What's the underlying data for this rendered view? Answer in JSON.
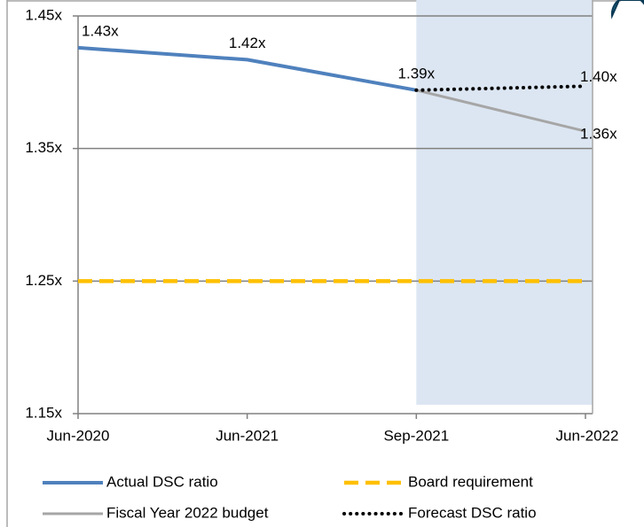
{
  "chart_data": {
    "type": "line",
    "categories": [
      "Jun-2020",
      "Jun-2021",
      "Sep-2021",
      "Jun-2022"
    ],
    "series": [
      {
        "name": "Actual DSC ratio",
        "color": "#4f81bd",
        "style": "solid",
        "values": [
          1.426,
          1.417,
          1.394,
          null
        ],
        "value_labels": [
          "1.43x",
          "1.42x",
          "1.39x",
          null
        ]
      },
      {
        "name": "Board requirement",
        "color": "#ffc000",
        "style": "dashed",
        "values": [
          1.25,
          1.25,
          1.25,
          1.25
        ]
      },
      {
        "name": "Fiscal Year 2022 budget",
        "color": "#a6a6a6",
        "style": "solid",
        "values": [
          null,
          null,
          1.394,
          1.363
        ],
        "value_labels": [
          null,
          null,
          null,
          "1.36x"
        ]
      },
      {
        "name": "Forecast DSC ratio",
        "color": "#000000",
        "style": "dotted",
        "values": [
          null,
          null,
          1.394,
          1.397
        ],
        "value_labels": [
          null,
          null,
          null,
          "1.40x"
        ]
      }
    ],
    "ylim": [
      1.15,
      1.45
    ],
    "yticks": [
      {
        "value": 1.15,
        "label": "1.15x"
      },
      {
        "value": 1.25,
        "label": "1.25x"
      },
      {
        "value": 1.35,
        "label": "1.35x"
      },
      {
        "value": 1.45,
        "label": "1.45x"
      }
    ],
    "grid": true,
    "shade": {
      "from": "Sep-2021",
      "to": "Jun-2022",
      "color": "#dce6f2"
    },
    "legend": "bottom"
  }
}
